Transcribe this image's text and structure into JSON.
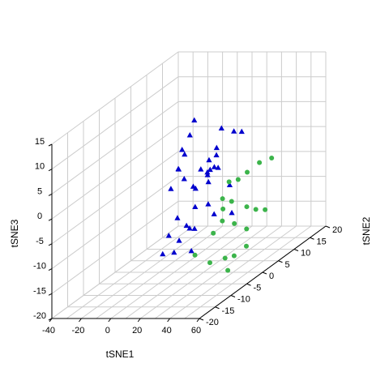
{
  "chart_data": {
    "type": "scatter",
    "title": "",
    "grid": true,
    "axes": {
      "x": {
        "label": "tSNE1",
        "ticks": [
          "-40",
          "-20",
          "0",
          "20",
          "40",
          "60"
        ],
        "range": [
          -40,
          60
        ]
      },
      "y": {
        "label": "tSNE2",
        "ticks": [
          "-20",
          "-15",
          "-10",
          "-5",
          "0",
          "5",
          "10",
          "15",
          "20"
        ],
        "range": [
          -20,
          20
        ]
      },
      "z": {
        "label": "tSNE3",
        "ticks": [
          "-20",
          "-15",
          "-10",
          "-5",
          "0",
          "5",
          "10",
          "15"
        ],
        "range": [
          -20,
          15
        ]
      }
    },
    "series": [
      {
        "marker": "triangle",
        "color": "#0000CD",
        "points": [
          {
            "x": -15,
            "y": 12,
            "z": 2
          },
          {
            "x": -12,
            "y": 12,
            "z": 5
          },
          {
            "x": -16,
            "y": 10,
            "z": 0
          },
          {
            "x": -14,
            "y": 8,
            "z": -3
          },
          {
            "x": -15,
            "y": 6,
            "z": -6
          },
          {
            "x": -10,
            "y": 8,
            "z": 0
          },
          {
            "x": -10,
            "y": 6,
            "z": -2
          },
          {
            "x": 3,
            "y": 20,
            "z": -1
          },
          {
            "x": 2,
            "y": 18,
            "z": 0
          },
          {
            "x": 1,
            "y": 13,
            "z": -1
          },
          {
            "x": 0,
            "y": 15,
            "z": 2
          },
          {
            "x": -2,
            "y": 12,
            "z": -3
          },
          {
            "x": -3,
            "y": 12,
            "z": -6
          },
          {
            "x": -6,
            "y": 6,
            "z": -4
          },
          {
            "x": -1,
            "y": 11,
            "z": -5
          },
          {
            "x": 3,
            "y": 12,
            "z": -2
          },
          {
            "x": 3,
            "y": 10,
            "z": -4
          },
          {
            "x": 2,
            "y": 13,
            "z": -5
          },
          {
            "x": 4,
            "y": 9,
            "z": -6
          },
          {
            "x": 1,
            "y": 8,
            "z": -3
          },
          {
            "x": -2,
            "y": 7,
            "z": -6
          },
          {
            "x": -5,
            "y": 9,
            "z": -11
          },
          {
            "x": -2,
            "y": 2,
            "z": -10
          },
          {
            "x": 6,
            "y": 4,
            "z": -5
          },
          {
            "x": 6,
            "y": 8,
            "z": -10
          },
          {
            "x": 2,
            "y": 3,
            "z": -12
          },
          {
            "x": 1,
            "y": 6,
            "z": -14
          },
          {
            "x": -3,
            "y": 3,
            "z": -15
          },
          {
            "x": 1,
            "y": 5,
            "z": -18
          },
          {
            "x": 7,
            "y": 15,
            "z": -15
          },
          {
            "x": 12,
            "y": 12,
            "z": -8
          },
          {
            "x": -10,
            "y": 3,
            "z": -14
          },
          {
            "x": 0,
            "y": 0,
            "z": -16
          },
          {
            "x": 3,
            "y": -5,
            "z": -14
          },
          {
            "x": 10,
            "y": 8,
            "z": -12
          },
          {
            "x": 2,
            "y": 4,
            "z": -13
          },
          {
            "x": 8,
            "y": 9,
            "z": -3
          }
        ]
      },
      {
        "marker": "circle",
        "color": "#3CB44B",
        "points": [
          {
            "x": 18,
            "y": 9,
            "z": -6
          },
          {
            "x": 22,
            "y": 10,
            "z": -6
          },
          {
            "x": 26,
            "y": 11,
            "z": -5
          },
          {
            "x": 30,
            "y": 13,
            "z": -4
          },
          {
            "x": 34,
            "y": 15,
            "z": -4
          },
          {
            "x": 20,
            "y": 6,
            "z": -8
          },
          {
            "x": 24,
            "y": 7,
            "z": -9
          },
          {
            "x": 16,
            "y": 8,
            "z": -11
          },
          {
            "x": 22,
            "y": 5,
            "z": -12
          },
          {
            "x": 30,
            "y": 9,
            "z": -11
          },
          {
            "x": 34,
            "y": 10,
            "z": -12
          },
          {
            "x": 36,
            "y": 12,
            "z": -13
          },
          {
            "x": 18,
            "y": 4,
            "z": -14
          },
          {
            "x": 28,
            "y": 6,
            "z": -13
          },
          {
            "x": 32,
            "y": 8,
            "z": -15
          },
          {
            "x": 20,
            "y": 2,
            "z": -19
          },
          {
            "x": 26,
            "y": 4,
            "z": -19
          },
          {
            "x": 30,
            "y": 5,
            "z": -19
          },
          {
            "x": 34,
            "y": 7,
            "z": -18
          },
          {
            "x": 30,
            "y": 3,
            "z": -21
          },
          {
            "x": 12,
            "y": 1,
            "z": -17
          }
        ]
      }
    ]
  }
}
